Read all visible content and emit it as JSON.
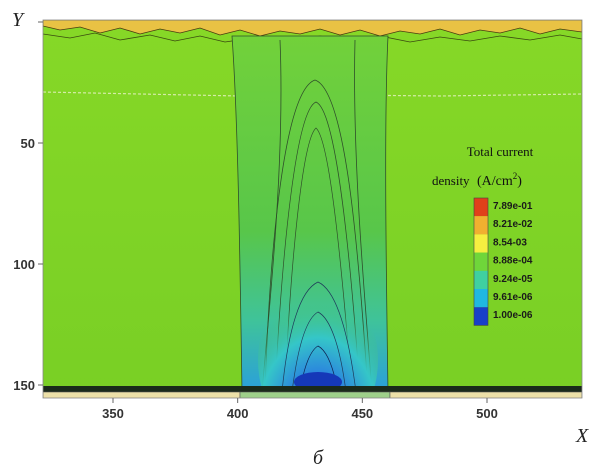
{
  "chart_data": {
    "type": "heatmap",
    "xlabel": "X",
    "ylabel": "Y",
    "caption": "б",
    "xlim": [
      320,
      580
    ],
    "ylim": [
      0,
      155
    ],
    "x_ticks": [
      350,
      400,
      450,
      500
    ],
    "y_ticks": [
      50,
      100,
      150
    ],
    "y_inverted": true,
    "legend": {
      "title": "Total current",
      "title_line2": "density",
      "unit_open": "(A/cm",
      "unit_exp": "2",
      "unit_close": ")",
      "placement": "right",
      "entries": [
        {
          "label": "7.89e-01",
          "color": "#e0401a"
        },
        {
          "label": "8.21e-02",
          "color": "#f0b030"
        },
        {
          "label": "8.54-03",
          "color": "#f5ef40"
        },
        {
          "label": "8.88e-04",
          "color": "#6fd63a"
        },
        {
          "label": "9.24e-05",
          "color": "#3fd0a0"
        },
        {
          "label": "9.61e-06",
          "color": "#20b8e0"
        },
        {
          "label": "1.00e-06",
          "color": "#1840c8"
        }
      ]
    },
    "background_level": "8.88e-04",
    "channel_x_range": [
      400,
      460
    ],
    "peak_x": 430,
    "colors": {
      "background": "#7ed321",
      "channel": "#5cc83c",
      "low": "#1840c8",
      "high": "#e0401a",
      "substrate": "#ece0a8"
    }
  }
}
